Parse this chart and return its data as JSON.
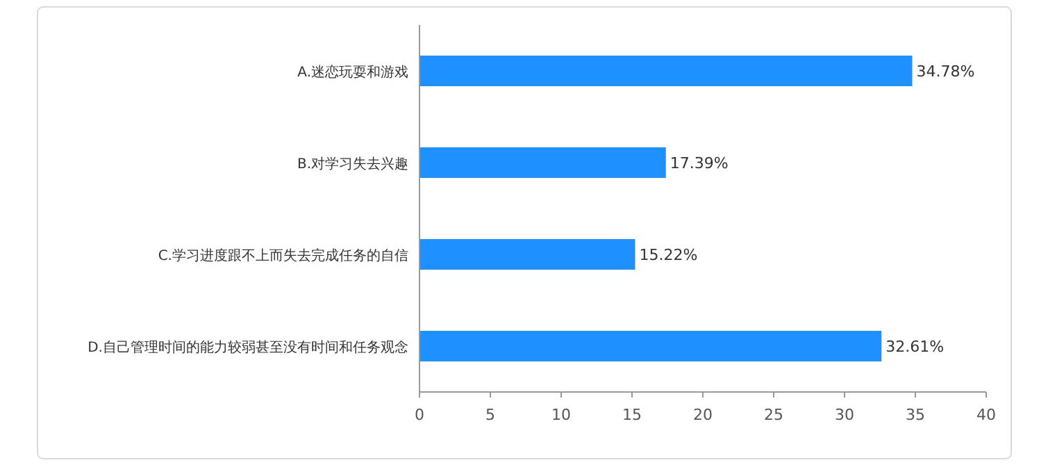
{
  "chart_data": {
    "type": "bar",
    "orientation": "horizontal",
    "categories": [
      "A.迷恋玩耍和游戏",
      "B.对学习失去兴趣",
      "C.学习进度跟不上而失去完成任务的自信",
      "D.自己管理时间的能力较弱甚至没有时间和任务观念"
    ],
    "values": [
      34.78,
      17.39,
      15.22,
      32.61
    ],
    "value_labels": [
      "34.78%",
      "17.39%",
      "15.22%",
      "32.61%"
    ],
    "color": "#1e90ff",
    "xlim": [
      0,
      40
    ],
    "xticks": [
      0,
      5,
      10,
      15,
      20,
      25,
      30,
      35,
      40
    ],
    "grid": false
  }
}
